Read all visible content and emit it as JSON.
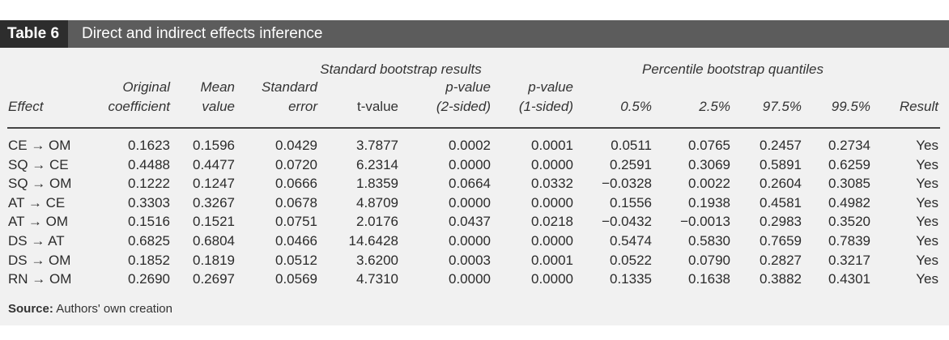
{
  "table": {
    "number": "Table 6",
    "title": "Direct and indirect effects inference",
    "group_headers": {
      "bootstrap": "Standard bootstrap results",
      "percentile": "Percentile bootstrap quantiles"
    },
    "columns": [
      {
        "key": "effect",
        "lines": [
          "",
          "Effect"
        ]
      },
      {
        "key": "orig",
        "lines": [
          "Original",
          "coefficient"
        ]
      },
      {
        "key": "mean",
        "lines": [
          "Mean",
          "value"
        ]
      },
      {
        "key": "se",
        "lines": [
          "Standard",
          "error"
        ]
      },
      {
        "key": "t",
        "lines": [
          "",
          "t-value"
        ]
      },
      {
        "key": "p2",
        "lines": [
          "p-value",
          "(2-sided)"
        ]
      },
      {
        "key": "p1",
        "lines": [
          "p-value",
          "(1-sided)"
        ]
      },
      {
        "key": "q05",
        "lines": [
          "",
          "0.5%"
        ]
      },
      {
        "key": "q25",
        "lines": [
          "",
          "2.5%"
        ]
      },
      {
        "key": "q975",
        "lines": [
          "",
          "97.5%"
        ]
      },
      {
        "key": "q995",
        "lines": [
          "",
          "99.5%"
        ]
      },
      {
        "key": "result",
        "lines": [
          "",
          "Result"
        ]
      }
    ],
    "rows": [
      [
        "CE → OM",
        "0.1623",
        "0.1596",
        "0.0429",
        "3.7877",
        "0.0002",
        "0.0001",
        "0.0511",
        "0.0765",
        "0.2457",
        "0.2734",
        "Yes"
      ],
      [
        "SQ → CE",
        "0.4488",
        "0.4477",
        "0.0720",
        "6.2314",
        "0.0000",
        "0.0000",
        "0.2591",
        "0.3069",
        "0.5891",
        "0.6259",
        "Yes"
      ],
      [
        "SQ → OM",
        "0.1222",
        "0.1247",
        "0.0666",
        "1.8359",
        "0.0664",
        "0.0332",
        "−0.0328",
        "0.0022",
        "0.2604",
        "0.3085",
        "Yes"
      ],
      [
        "AT → CE",
        "0.3303",
        "0.3267",
        "0.0678",
        "4.8709",
        "0.0000",
        "0.0000",
        "0.1556",
        "0.1938",
        "0.4581",
        "0.4982",
        "Yes"
      ],
      [
        "AT → OM",
        "0.1516",
        "0.1521",
        "0.0751",
        "2.0176",
        "0.0437",
        "0.0218",
        "−0.0432",
        "−0.0013",
        "0.2983",
        "0.3520",
        "Yes"
      ],
      [
        "DS → AT",
        "0.6825",
        "0.6804",
        "0.0466",
        "14.6428",
        "0.0000",
        "0.0000",
        "0.5474",
        "0.5830",
        "0.7659",
        "0.7839",
        "Yes"
      ],
      [
        "DS → OM",
        "0.1852",
        "0.1819",
        "0.0512",
        "3.6200",
        "0.0003",
        "0.0001",
        "0.0522",
        "0.0790",
        "0.2827",
        "0.3217",
        "Yes"
      ],
      [
        "RN → OM",
        "0.2690",
        "0.2697",
        "0.0569",
        "4.7310",
        "0.0000",
        "0.0000",
        "0.1335",
        "0.1638",
        "0.3882",
        "0.4301",
        "Yes"
      ]
    ],
    "source_label": "Source:",
    "source_text": " Authors' own creation",
    "colors": {
      "title_bar": "#5c5c5c",
      "number_box": "#2d2d2d",
      "background": "#f1f1f1"
    }
  }
}
